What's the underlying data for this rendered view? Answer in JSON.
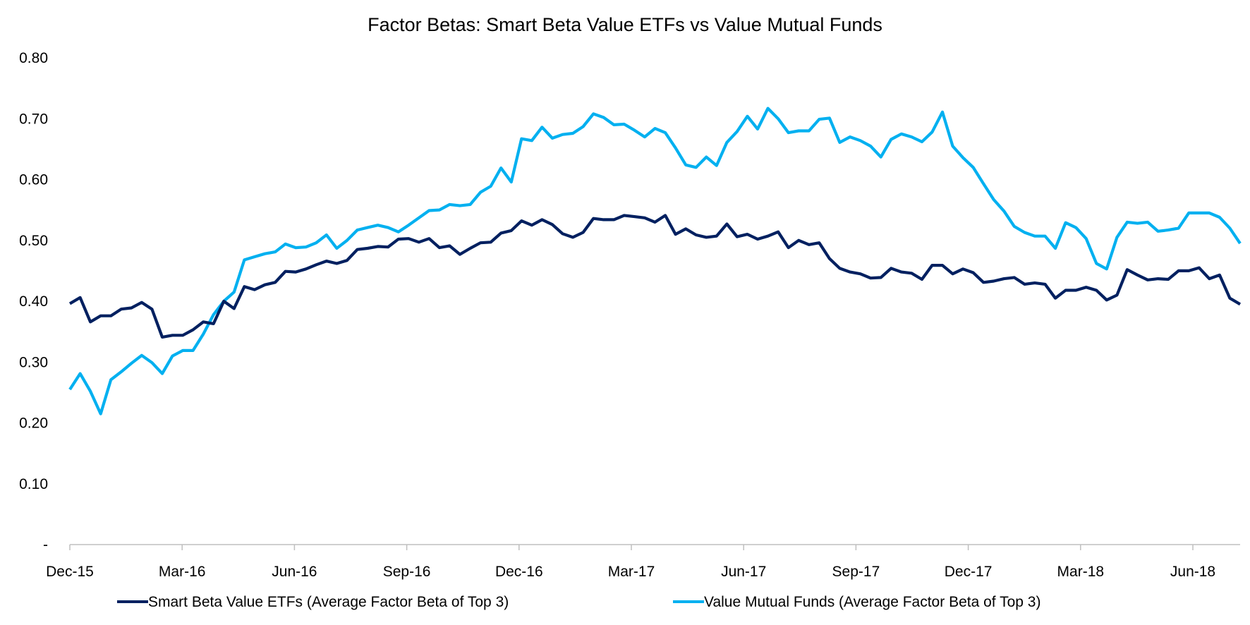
{
  "chart_data": {
    "type": "line",
    "title": "Factor Betas: Smart Beta Value ETFs vs Value Mutual Funds",
    "xlabel": "",
    "ylabel": "",
    "ylim": [
      0,
      0.8
    ],
    "y_ticks": [
      "-",
      "0.10",
      "0.20",
      "0.30",
      "0.40",
      "0.50",
      "0.60",
      "0.70",
      "0.80"
    ],
    "x_ticks": [
      "Dec-15",
      "Mar-16",
      "Jun-16",
      "Sep-16",
      "Dec-16",
      "Mar-17",
      "Jun-17",
      "Sep-17",
      "Dec-17",
      "Mar-18",
      "Jun-18"
    ],
    "grid": false,
    "legend_position": "bottom",
    "series": [
      {
        "name": "Smart Beta Value ETFs (Average Factor Beta of Top 3)",
        "color": "#002060",
        "values": [
          0.396,
          0.406,
          0.366,
          0.376,
          0.376,
          0.387,
          0.389,
          0.398,
          0.387,
          0.341,
          0.344,
          0.344,
          0.353,
          0.366,
          0.363,
          0.4,
          0.388,
          0.424,
          0.419,
          0.427,
          0.431,
          0.449,
          0.448,
          0.453,
          0.46,
          0.466,
          0.462,
          0.467,
          0.485,
          0.487,
          0.49,
          0.489,
          0.502,
          0.503,
          0.497,
          0.503,
          0.488,
          0.491,
          0.477,
          0.487,
          0.496,
          0.497,
          0.512,
          0.516,
          0.532,
          0.525,
          0.534,
          0.526,
          0.511,
          0.505,
          0.513,
          0.536,
          0.534,
          0.534,
          0.541,
          0.539,
          0.537,
          0.53,
          0.541,
          0.51,
          0.519,
          0.509,
          0.505,
          0.507,
          0.527,
          0.506,
          0.51,
          0.502,
          0.507,
          0.514,
          0.488,
          0.5,
          0.493,
          0.496,
          0.47,
          0.454,
          0.448,
          0.445,
          0.438,
          0.439,
          0.454,
          0.448,
          0.446,
          0.436,
          0.459,
          0.459,
          0.445,
          0.453,
          0.447,
          0.431,
          0.433,
          0.437,
          0.439,
          0.428,
          0.43,
          0.428,
          0.405,
          0.418,
          0.418,
          0.423,
          0.418,
          0.402,
          0.41,
          0.452,
          0.443,
          0.435,
          0.437,
          0.436,
          0.45,
          0.45,
          0.455,
          0.437,
          0.443,
          0.405,
          0.395
        ]
      },
      {
        "name": "Value Mutual Funds (Average Factor Beta of Top 3)",
        "color": "#00B0F0",
        "values": [
          0.255,
          0.281,
          0.252,
          0.215,
          0.271,
          0.284,
          0.298,
          0.311,
          0.299,
          0.281,
          0.31,
          0.319,
          0.319,
          0.346,
          0.378,
          0.4,
          0.415,
          0.468,
          0.473,
          0.478,
          0.481,
          0.494,
          0.488,
          0.489,
          0.496,
          0.509,
          0.487,
          0.5,
          0.517,
          0.521,
          0.525,
          0.521,
          0.514,
          0.525,
          0.537,
          0.549,
          0.55,
          0.559,
          0.557,
          0.559,
          0.579,
          0.589,
          0.619,
          0.596,
          0.667,
          0.664,
          0.686,
          0.668,
          0.674,
          0.676,
          0.687,
          0.708,
          0.702,
          0.69,
          0.691,
          0.681,
          0.67,
          0.684,
          0.677,
          0.652,
          0.624,
          0.62,
          0.637,
          0.623,
          0.661,
          0.679,
          0.704,
          0.683,
          0.717,
          0.7,
          0.677,
          0.68,
          0.68,
          0.699,
          0.701,
          0.661,
          0.67,
          0.664,
          0.655,
          0.637,
          0.666,
          0.675,
          0.67,
          0.662,
          0.678,
          0.711,
          0.655,
          0.636,
          0.62,
          0.593,
          0.567,
          0.548,
          0.523,
          0.513,
          0.507,
          0.507,
          0.487,
          0.529,
          0.521,
          0.503,
          0.462,
          0.453,
          0.505,
          0.53,
          0.528,
          0.53,
          0.515,
          0.517,
          0.52,
          0.545,
          0.545,
          0.545,
          0.538,
          0.52,
          0.495
        ]
      }
    ]
  }
}
